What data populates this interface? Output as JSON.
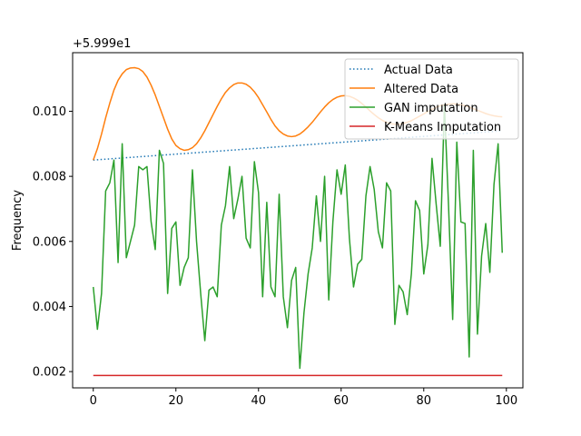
{
  "chart_data": {
    "type": "line",
    "offset_text": "+5.999e1",
    "xlabel": "",
    "ylabel": "Frequency",
    "xlim": [
      -5,
      104
    ],
    "ylim": [
      0.0015,
      0.0118
    ],
    "xticks": [
      0,
      20,
      40,
      60,
      80,
      100
    ],
    "yticks": [
      0.002,
      0.004,
      0.006,
      0.008,
      0.01
    ],
    "ytick_labels": [
      "0.002",
      "0.004",
      "0.006",
      "0.008",
      "0.010"
    ],
    "grid": false,
    "legend_position": "top-right",
    "series": [
      {
        "name": "Actual Data",
        "color": "#1f77b4",
        "style": "dotted",
        "x": [
          0,
          99
        ],
        "y": [
          0.0085,
          0.0094
        ],
        "note_visible": "hidden beneath Altered Data"
      },
      {
        "name": "Altered Data",
        "color": "#ff7f0e",
        "style": "solid",
        "x": [
          0,
          1,
          2,
          3,
          4,
          5,
          6,
          7,
          8,
          9,
          10,
          11,
          12,
          13,
          14,
          15,
          16,
          17,
          18,
          19,
          20,
          21,
          22,
          23,
          24,
          25,
          26,
          27,
          28,
          29,
          30,
          31,
          32,
          33,
          34,
          35,
          36,
          37,
          38,
          39,
          40,
          41,
          42,
          43,
          44,
          45,
          46,
          47,
          48,
          49,
          50,
          51,
          52,
          53,
          54,
          55,
          56,
          57,
          58,
          59,
          60,
          61,
          62,
          63,
          64,
          65,
          66,
          67,
          68,
          69,
          70,
          71,
          72,
          73,
          74,
          75,
          76,
          77,
          78,
          79,
          80,
          81,
          82,
          83,
          84,
          85,
          86,
          87,
          88,
          89,
          90,
          91,
          92,
          93,
          94,
          95,
          96,
          97,
          98,
          99
        ],
        "y": [
          0.0085,
          0.00885,
          0.0093,
          0.0098,
          0.01025,
          0.01065,
          0.01095,
          0.01115,
          0.01128,
          0.01133,
          0.01134,
          0.01131,
          0.01122,
          0.01105,
          0.0108,
          0.0105,
          0.01015,
          0.0098,
          0.00945,
          0.00915,
          0.00895,
          0.00885,
          0.0088,
          0.00882,
          0.00888,
          0.009,
          0.00918,
          0.0094,
          0.00965,
          0.0099,
          0.01015,
          0.01038,
          0.01058,
          0.01072,
          0.01082,
          0.01087,
          0.01087,
          0.01083,
          0.01074,
          0.0106,
          0.01042,
          0.0102,
          0.00998,
          0.00975,
          0.00955,
          0.0094,
          0.0093,
          0.00924,
          0.00922,
          0.00924,
          0.0093,
          0.0094,
          0.00952,
          0.00966,
          0.00982,
          0.00998,
          0.01013,
          0.01026,
          0.01036,
          0.01043,
          0.01047,
          0.01048,
          0.01046,
          0.01041,
          0.01034,
          0.01024,
          0.01013,
          0.01001,
          0.0099,
          0.0098,
          0.00972,
          0.00966,
          0.00962,
          0.0096,
          0.0096,
          0.00962,
          0.00966,
          0.00971,
          0.00978,
          0.00985,
          0.00992,
          0.00999,
          0.01006,
          0.01012,
          0.01017,
          0.0102,
          0.01022,
          0.01023,
          0.01022,
          0.0102,
          0.01017,
          0.01013,
          0.01008,
          0.01003,
          0.00998,
          0.00993,
          0.00989,
          0.00986,
          0.00984,
          0.00983
        ]
      },
      {
        "name": "GAN imputation",
        "color": "#2ca02c",
        "style": "solid",
        "x": [
          0,
          1,
          2,
          3,
          4,
          5,
          6,
          7,
          8,
          9,
          10,
          11,
          12,
          13,
          14,
          15,
          16,
          17,
          18,
          19,
          20,
          21,
          22,
          23,
          24,
          25,
          26,
          27,
          28,
          29,
          30,
          31,
          32,
          33,
          34,
          35,
          36,
          37,
          38,
          39,
          40,
          41,
          42,
          43,
          44,
          45,
          46,
          47,
          48,
          49,
          50,
          51,
          52,
          53,
          54,
          55,
          56,
          57,
          58,
          59,
          60,
          61,
          62,
          63,
          64,
          65,
          66,
          67,
          68,
          69,
          70,
          71,
          72,
          73,
          74,
          75,
          76,
          77,
          78,
          79,
          80,
          81,
          82,
          83,
          84,
          85,
          86,
          87,
          88,
          89,
          90,
          91,
          92,
          93,
          94,
          95,
          96,
          97,
          98,
          99
        ],
        "y": [
          0.0046,
          0.0033,
          0.0044,
          0.00755,
          0.0078,
          0.0085,
          0.00535,
          0.009,
          0.0055,
          0.006,
          0.0065,
          0.0083,
          0.0082,
          0.0083,
          0.0066,
          0.00575,
          0.0088,
          0.0084,
          0.0044,
          0.0064,
          0.0066,
          0.00465,
          0.0052,
          0.0055,
          0.0082,
          0.006,
          0.0044,
          0.00295,
          0.0045,
          0.0046,
          0.0043,
          0.0065,
          0.0071,
          0.0083,
          0.0067,
          0.0073,
          0.008,
          0.0061,
          0.0058,
          0.00845,
          0.0075,
          0.0043,
          0.0072,
          0.0046,
          0.0043,
          0.00745,
          0.0043,
          0.00335,
          0.0048,
          0.0052,
          0.0021,
          0.0038,
          0.005,
          0.0058,
          0.0074,
          0.006,
          0.008,
          0.0042,
          0.0066,
          0.0082,
          0.00745,
          0.00835,
          0.0061,
          0.0046,
          0.0053,
          0.00545,
          0.0074,
          0.0083,
          0.0076,
          0.0063,
          0.0058,
          0.0078,
          0.00755,
          0.00345,
          0.00465,
          0.00445,
          0.00375,
          0.005,
          0.00725,
          0.00695,
          0.005,
          0.0059,
          0.00855,
          0.00715,
          0.00585,
          0.0102,
          0.0071,
          0.0036,
          0.00905,
          0.0066,
          0.00655,
          0.00245,
          0.0088,
          0.00315,
          0.00555,
          0.00655,
          0.00505,
          0.00775,
          0.009,
          0.00565
        ]
      },
      {
        "name": "K-Means Imputation",
        "color": "#d62728",
        "style": "solid",
        "x": [
          0,
          99
        ],
        "y": [
          0.00188,
          0.00188
        ]
      }
    ]
  }
}
